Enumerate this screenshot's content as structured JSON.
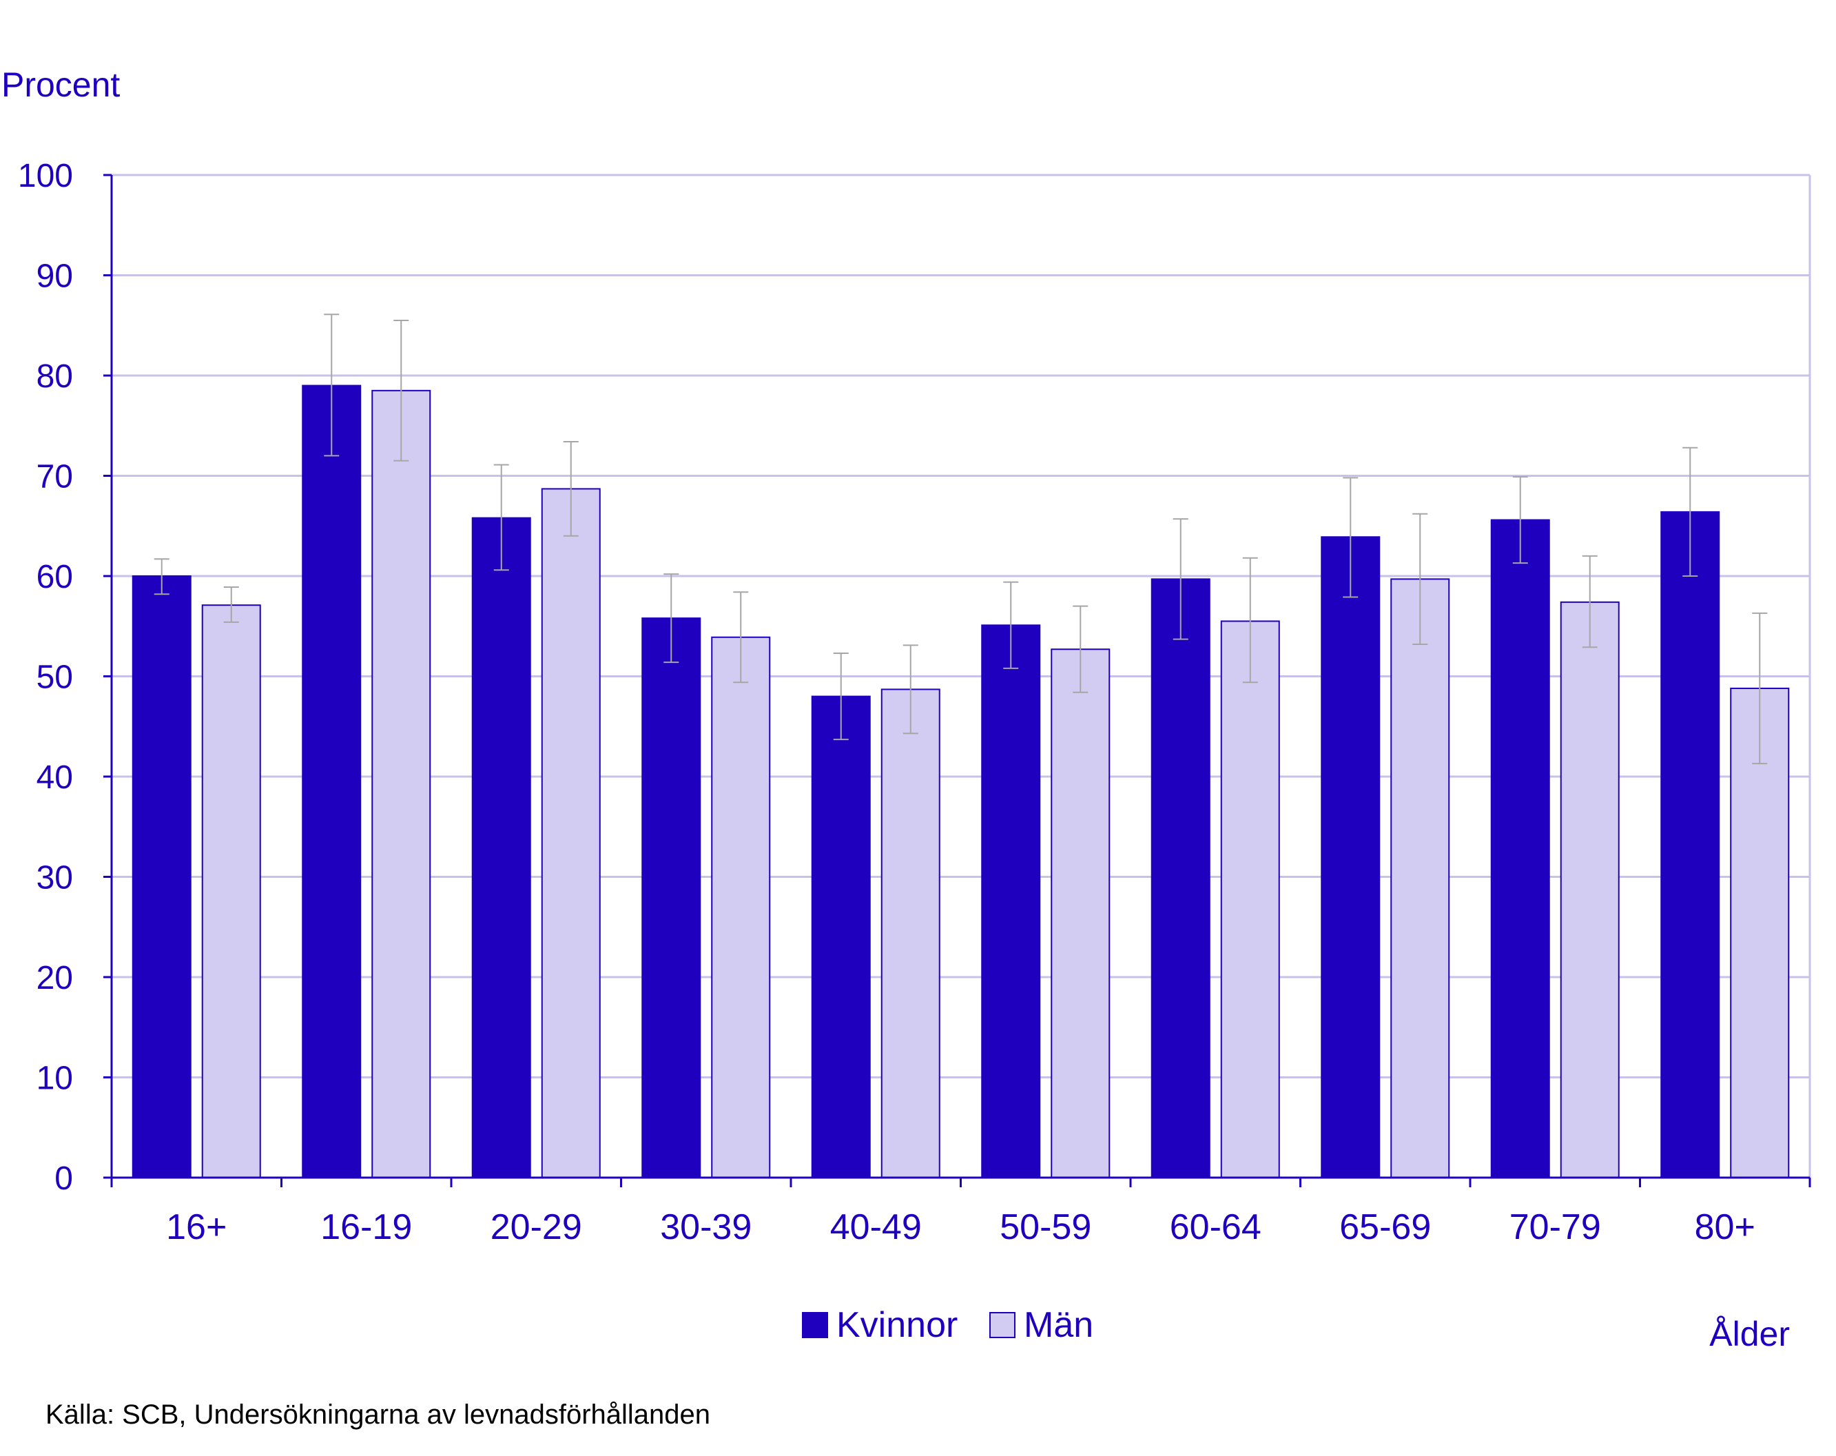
{
  "chart_data": {
    "type": "bar",
    "ylabel": "Procent",
    "xlabel": "Ålder",
    "source": "Källa: SCB, Undersökningarna av levnadsförhållanden",
    "ylim": [
      0,
      100
    ],
    "yticks": [
      0,
      10,
      20,
      30,
      40,
      50,
      60,
      70,
      80,
      90,
      100
    ],
    "grid": true,
    "legend_position": "bottom-center",
    "categories": [
      "16+",
      "16-19",
      "20-29",
      "30-39",
      "40-49",
      "50-59",
      "60-64",
      "65-69",
      "70-79",
      "80+"
    ],
    "series": [
      {
        "name": "Kvinnor",
        "color": "#1e00be",
        "values": [
          60.0,
          79.0,
          65.8,
          55.8,
          48.0,
          55.1,
          59.7,
          63.9,
          65.6,
          66.4
        ],
        "err_low": [
          58.2,
          72.0,
          60.6,
          51.4,
          43.7,
          50.8,
          53.7,
          57.9,
          61.3,
          60.0
        ],
        "err_high": [
          61.7,
          86.1,
          71.1,
          60.2,
          52.3,
          59.4,
          65.7,
          69.8,
          69.9,
          72.8
        ]
      },
      {
        "name": "Män",
        "color": "#d2ccf2",
        "values": [
          57.1,
          78.5,
          68.7,
          53.9,
          48.7,
          52.7,
          55.5,
          59.7,
          57.4,
          48.8
        ],
        "err_low": [
          55.4,
          71.5,
          64.0,
          49.4,
          44.3,
          48.4,
          49.4,
          53.2,
          52.9,
          41.3
        ],
        "err_high": [
          58.9,
          85.5,
          73.4,
          58.4,
          53.1,
          57.0,
          61.8,
          66.2,
          62.0,
          56.3
        ]
      }
    ]
  },
  "colors": {
    "text": "#1e00be",
    "axis": "#1e00be",
    "grid": "#c7c2ea",
    "error_bar": "#a6a6a6"
  }
}
